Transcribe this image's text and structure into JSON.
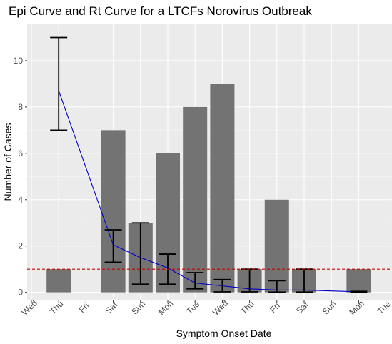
{
  "chart_data": {
    "type": "bar",
    "title": "Epi Curve and Rt Curve for a LTCFs Norovirus Outbreak",
    "xlabel": "Symptom Onset Date",
    "ylabel": "Number of Cases",
    "categories": [
      "Wed",
      "Thu",
      "Fri",
      "Sat",
      "Sun",
      "Mon",
      "Tue",
      "Wed",
      "Thu",
      "Fri",
      "Sat",
      "Sun",
      "Mon",
      "Tue"
    ],
    "ylim": [
      -0.35,
      11.6
    ],
    "yticks": [
      0,
      2,
      4,
      6,
      8,
      10
    ],
    "grid": true,
    "series": [
      {
        "type": "bar",
        "color": "#737373",
        "values": [
          null,
          1,
          null,
          7,
          3,
          6,
          8,
          9,
          1,
          4,
          1,
          null,
          1,
          null
        ]
      },
      {
        "type": "line-with-errorbars",
        "color": "#0000cc",
        "errorbar_color": "#000000",
        "points": [
          {
            "x": "Thu",
            "index": 1,
            "value": 8.7,
            "lower": 7.0,
            "upper": 11.0
          },
          {
            "x": "Sat",
            "index": 3,
            "value": 2.05,
            "lower": 1.3,
            "upper": 2.7
          },
          {
            "x": "Sun",
            "index": 4,
            "value": 1.5,
            "lower": 0.35,
            "upper": 3.0
          },
          {
            "x": "Mon",
            "index": 5,
            "value": 1.05,
            "lower": 0.35,
            "upper": 1.65
          },
          {
            "x": "Tue",
            "index": 6,
            "value": 0.4,
            "lower": 0.15,
            "upper": 0.85
          },
          {
            "x": "Wed",
            "index": 7,
            "value": 0.28,
            "lower": 0.02,
            "upper": 0.55
          },
          {
            "x": "Thu",
            "index": 8,
            "value": 0.15,
            "lower": 0.02,
            "upper": 1.0
          },
          {
            "x": "Fri",
            "index": 9,
            "value": 0.1,
            "lower": 0.01,
            "upper": 0.5
          },
          {
            "x": "Sat",
            "index": 10,
            "value": 0.1,
            "lower": 0.01,
            "upper": 1.0
          },
          {
            "x": "Mon",
            "index": 12,
            "value": 0.02,
            "lower": 0.0,
            "upper": 0.04
          }
        ]
      },
      {
        "type": "hline",
        "value": 1,
        "color": "#cc0000",
        "dashed": true
      }
    ]
  }
}
